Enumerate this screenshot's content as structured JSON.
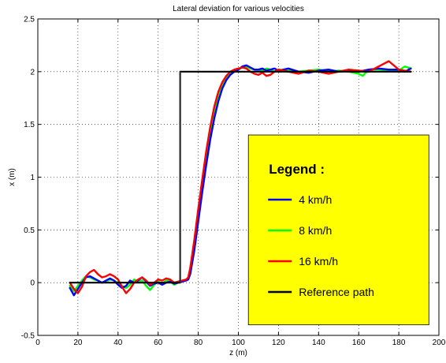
{
  "chart_data": {
    "type": "line",
    "title": "Lateral deviation for various velocities",
    "xlabel": "z (m)",
    "ylabel": "x (m)",
    "xlim": [
      0,
      200
    ],
    "ylim": [
      -0.5,
      2.5
    ],
    "xticks": [
      0,
      20,
      40,
      60,
      80,
      100,
      120,
      140,
      160,
      180,
      200
    ],
    "yticks": [
      -0.5,
      0,
      0.5,
      1,
      1.5,
      2,
      2.5
    ],
    "grid": true,
    "legend": {
      "title": "Legend :",
      "placement": "right",
      "background": "#ffff00",
      "entries": [
        {
          "label": "4 km/h",
          "color": "#0000ff"
        },
        {
          "label": "8 km/h",
          "color": "#00ff00"
        },
        {
          "label": "16 km/h",
          "color": "#ff0000"
        },
        {
          "label": "Reference path",
          "color": "#000000"
        }
      ]
    },
    "series": [
      {
        "name": "8 km/h",
        "color": "#00ff00",
        "x": [
          16,
          18,
          20,
          22,
          24,
          26,
          28,
          30,
          32,
          34,
          36,
          38,
          40,
          42,
          44,
          46,
          48,
          50,
          52,
          54,
          56,
          58,
          60,
          62,
          64,
          66,
          68,
          70,
          72,
          74,
          75,
          76,
          78,
          80,
          82,
          84,
          86,
          88,
          90,
          92,
          94,
          96,
          98,
          100,
          102,
          104,
          106,
          108,
          110,
          112,
          114,
          116,
          118,
          120,
          125,
          130,
          135,
          140,
          145,
          150,
          155,
          160,
          162,
          165,
          170,
          175,
          180,
          183,
          186
        ],
        "y": [
          -0.03,
          -0.08,
          -0.03,
          0.02,
          0.06,
          0.05,
          0.03,
          0.02,
          0.0,
          0.01,
          0.03,
          0.02,
          0.0,
          -0.03,
          -0.05,
          -0.02,
          0.03,
          0.01,
          0.02,
          -0.03,
          -0.07,
          -0.02,
          0.01,
          -0.01,
          0.02,
          0.01,
          -0.02,
          0.0,
          0.01,
          0.03,
          0.04,
          0.12,
          0.35,
          0.62,
          0.9,
          1.18,
          1.42,
          1.62,
          1.78,
          1.88,
          1.95,
          1.99,
          2.01,
          2.02,
          2.04,
          2.05,
          2.03,
          2.02,
          2.02,
          2.01,
          2.03,
          2.02,
          2.0,
          2.02,
          2.01,
          2.0,
          2.01,
          2.02,
          2.0,
          2.01,
          2.0,
          1.98,
          1.96,
          2.02,
          2.02,
          2.01,
          2.01,
          2.05,
          2.03
        ]
      },
      {
        "name": "4 km/h",
        "color": "#0000ff",
        "x": [
          16,
          18,
          20,
          22,
          24,
          26,
          28,
          30,
          32,
          34,
          36,
          38,
          40,
          42,
          44,
          46,
          48,
          50,
          52,
          54,
          56,
          58,
          60,
          62,
          64,
          66,
          68,
          70,
          72,
          74,
          75,
          76,
          78,
          80,
          82,
          84,
          86,
          88,
          90,
          92,
          94,
          96,
          98,
          100,
          102,
          104,
          106,
          108,
          110,
          112,
          114,
          116,
          118,
          120,
          125,
          130,
          135,
          140,
          145,
          150,
          155,
          160,
          165,
          170,
          175,
          180,
          183,
          186
        ],
        "y": [
          -0.05,
          -0.12,
          -0.06,
          0.0,
          0.05,
          0.06,
          0.04,
          0.02,
          0.0,
          0.02,
          0.04,
          0.02,
          -0.02,
          -0.05,
          -0.03,
          0.02,
          0.0,
          0.02,
          0.05,
          0.01,
          -0.03,
          -0.01,
          0.0,
          -0.02,
          0.0,
          0.01,
          -0.01,
          0.0,
          0.01,
          0.02,
          0.03,
          0.08,
          0.3,
          0.58,
          0.86,
          1.12,
          1.36,
          1.56,
          1.72,
          1.84,
          1.92,
          1.97,
          2.0,
          2.02,
          2.05,
          2.06,
          2.04,
          2.02,
          2.02,
          2.03,
          2.01,
          2.02,
          2.03,
          2.01,
          2.03,
          2.0,
          1.99,
          2.01,
          2.02,
          2.0,
          2.01,
          2.0,
          2.02,
          2.03,
          2.02,
          2.02,
          2.0,
          2.03
        ]
      },
      {
        "name": "16 km/h",
        "color": "#ff0000",
        "x": [
          16,
          18,
          20,
          22,
          24,
          26,
          28,
          30,
          32,
          34,
          36,
          38,
          40,
          42,
          44,
          46,
          48,
          50,
          52,
          54,
          56,
          58,
          60,
          62,
          64,
          66,
          68,
          70,
          72,
          74,
          75,
          76,
          78,
          80,
          82,
          84,
          86,
          88,
          90,
          92,
          94,
          96,
          98,
          100,
          102,
          104,
          106,
          108,
          110,
          112,
          114,
          116,
          118,
          120,
          125,
          130,
          135,
          140,
          145,
          150,
          155,
          160,
          165,
          170,
          175,
          180,
          183,
          186
        ],
        "y": [
          0.0,
          -0.06,
          -0.1,
          -0.04,
          0.06,
          0.1,
          0.12,
          0.08,
          0.05,
          0.06,
          0.08,
          0.06,
          0.03,
          -0.04,
          -0.1,
          -0.06,
          0.0,
          0.03,
          0.05,
          0.02,
          -0.02,
          0.0,
          0.03,
          0.02,
          0.04,
          0.03,
          0.0,
          0.01,
          0.02,
          0.03,
          0.05,
          0.14,
          0.4,
          0.7,
          0.98,
          1.25,
          1.48,
          1.67,
          1.81,
          1.9,
          1.96,
          2.0,
          2.02,
          2.03,
          2.04,
          2.03,
          2.0,
          1.98,
          1.97,
          1.99,
          1.96,
          1.97,
          2.0,
          2.02,
          2.0,
          1.98,
          2.01,
          2.0,
          1.98,
          2.0,
          2.02,
          2.01,
          2.0,
          2.05,
          2.1,
          2.02,
          2.01,
          2.0
        ]
      },
      {
        "name": "Reference path",
        "color": "#000000",
        "x": [
          16,
          71,
          71,
          186
        ],
        "y": [
          0,
          0,
          2,
          2
        ]
      }
    ]
  }
}
